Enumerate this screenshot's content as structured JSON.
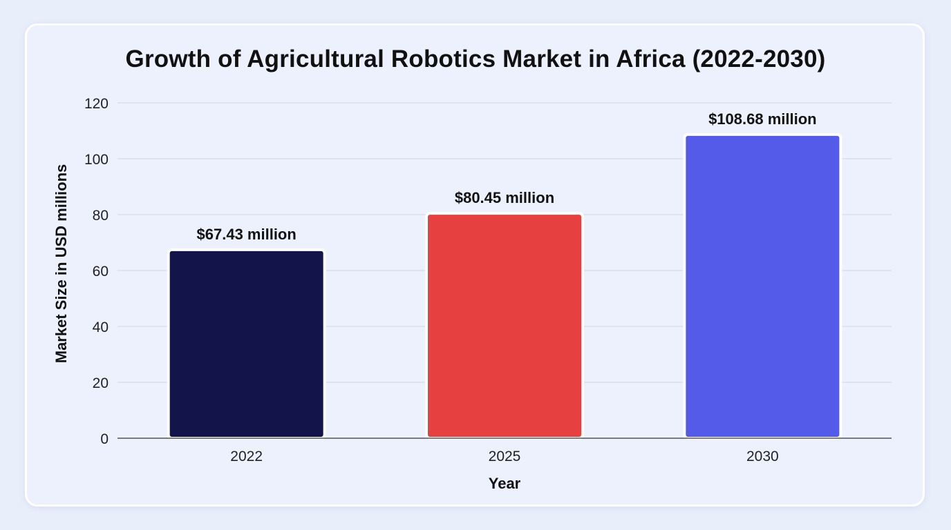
{
  "chart_data": {
    "type": "bar",
    "title": "Growth of Agricultural Robotics Market in Africa (2022-2030)",
    "xlabel": "Year",
    "ylabel": "Market Size in USD millions",
    "categories": [
      "2022",
      "2025",
      "2030"
    ],
    "values": [
      67.43,
      80.45,
      108.68
    ],
    "data_labels": [
      "$67.43 million",
      "$80.45 million",
      "$108.68 million"
    ],
    "colors": [
      "#13154a",
      "#e64040",
      "#545be8"
    ],
    "ylim": [
      0,
      120
    ],
    "yticks": [
      0,
      20,
      40,
      60,
      80,
      100,
      120
    ],
    "grid": true,
    "legend": "none"
  }
}
